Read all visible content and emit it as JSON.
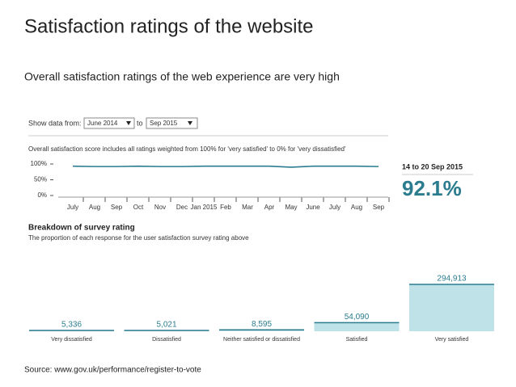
{
  "title": "Satisfaction ratings of the website",
  "subtitle": "Overall satisfaction ratings of the web experience are very high",
  "controls": {
    "label": "Show data from:",
    "from": "June 2014",
    "to_label": "to",
    "to": "Sep 2015"
  },
  "highlight": {
    "period": "14 to 20 Sep 2015",
    "value": "92.1%"
  },
  "source": "Source: www.gov.uk/performance/register-to-vote",
  "chart_data": [
    {
      "type": "line",
      "title": "Overall satisfaction score includes all ratings weighted from 100% for 'very satisfied' to 0% for 'very dissatisfied'",
      "categories": [
        "July",
        "Aug",
        "Sep",
        "Oct",
        "Nov",
        "Dec",
        "Jan 2015",
        "Feb",
        "Mar",
        "Apr",
        "May",
        "June",
        "July",
        "Aug",
        "Sep"
      ],
      "values": [
        93,
        92,
        92,
        93,
        92,
        92,
        93,
        93,
        93,
        93,
        90,
        93,
        93,
        93,
        92
      ],
      "color": "#2b7c8f",
      "ylim": [
        0,
        100
      ],
      "yticks": [
        {
          "value": 100,
          "label": "100%"
        },
        {
          "value": 50,
          "label": "50%"
        },
        {
          "value": 0,
          "label": "0%"
        }
      ]
    },
    {
      "type": "bar",
      "title": "Breakdown of survey rating",
      "subtitle": "The proportion of each response for the user satisfaction survey rating above",
      "categories": [
        "Very dissatisfied",
        "Dissatisfied",
        "Neither satisfied or dissatisfied",
        "Satisfied",
        "Very satisfied"
      ],
      "values": [
        5336,
        5021,
        8595,
        54090,
        294913
      ],
      "value_labels": [
        "5,336",
        "5,021",
        "8,595",
        "54,090",
        "294,913"
      ],
      "color": "#bfe1e8",
      "edge_color": "#2b7c8f"
    }
  ]
}
